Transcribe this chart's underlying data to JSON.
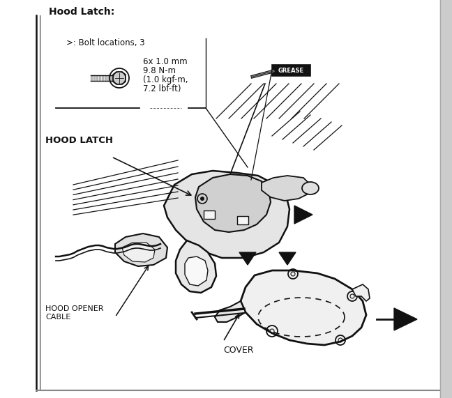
{
  "title": "Hood Latch:",
  "bg_color": "#ffffff",
  "bolt_label": ">: Bolt locations, 3",
  "bolt_spec_line1": "6x 1.0 mm",
  "bolt_spec_line2": "9.8 N-m",
  "bolt_spec_line3": "(1.0 kgf-m,",
  "bolt_spec_line4": "7.2 lbf-ft)",
  "grease_label": "GREASE",
  "hood_latch_label": "HOOD LATCH",
  "hood_opener_label": "HOOD OPENER\nCABLE",
  "cover_label": "COVER",
  "text_color": "#111111",
  "line_color": "#111111",
  "fig_width": 6.48,
  "fig_height": 5.71,
  "dpi": 100
}
